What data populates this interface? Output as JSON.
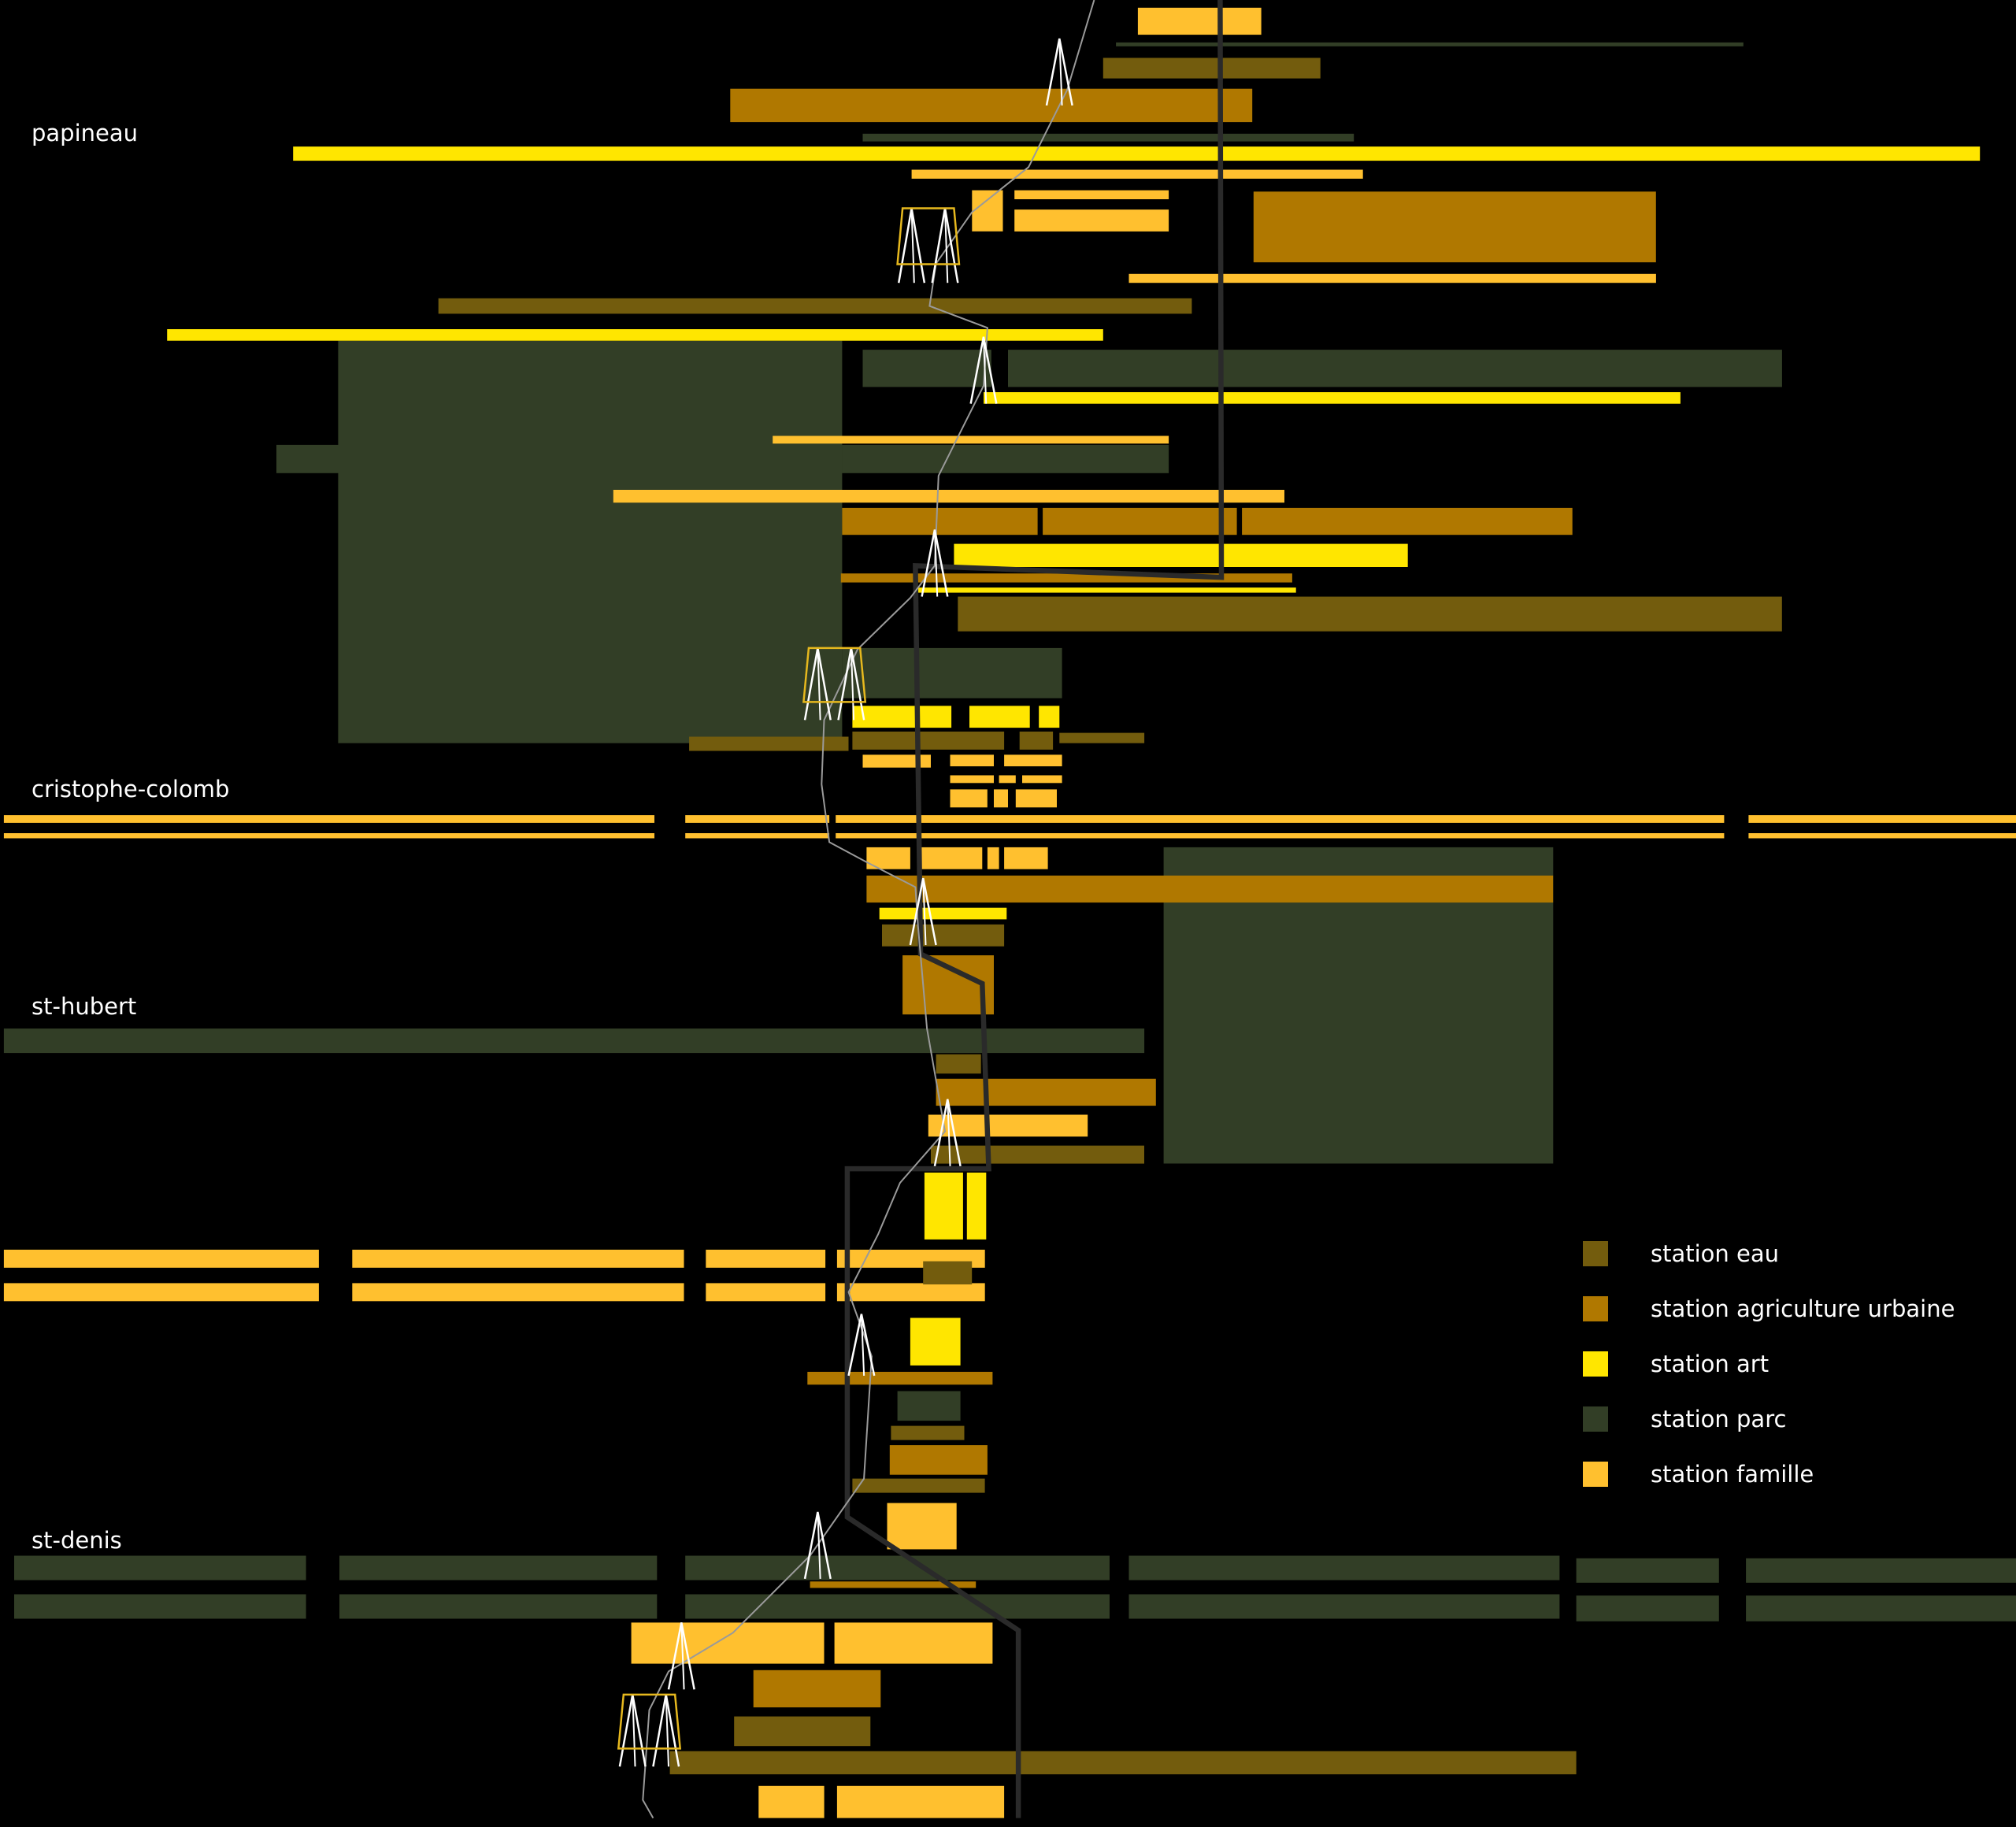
{
  "streets": [
    {
      "key": "papineau",
      "label": "papineau"
    },
    {
      "key": "cristophe_colomb",
      "label": "cristophe-colomb"
    },
    {
      "key": "st_hubert",
      "label": "st-hubert"
    },
    {
      "key": "st_denis",
      "label": "st-denis"
    }
  ],
  "legend": {
    "items": [
      {
        "key": "eau",
        "label": "station eau",
        "color": "#735c0d"
      },
      {
        "key": "agriculture",
        "label": "station agriculture urbaine",
        "color": "#b07800"
      },
      {
        "key": "art",
        "label": "station art",
        "color": "#ffe600"
      },
      {
        "key": "parc",
        "label": "station parc",
        "color": "#323e26"
      },
      {
        "key": "famille",
        "label": "station famille",
        "color": "#ffc02f"
      }
    ]
  },
  "colors": {
    "background": "#000000",
    "route_main": "#2a2a2a",
    "route_fine": "#9a9a9a",
    "pylon": "#ffffff",
    "pylon_accent": "#e6b81e"
  }
}
